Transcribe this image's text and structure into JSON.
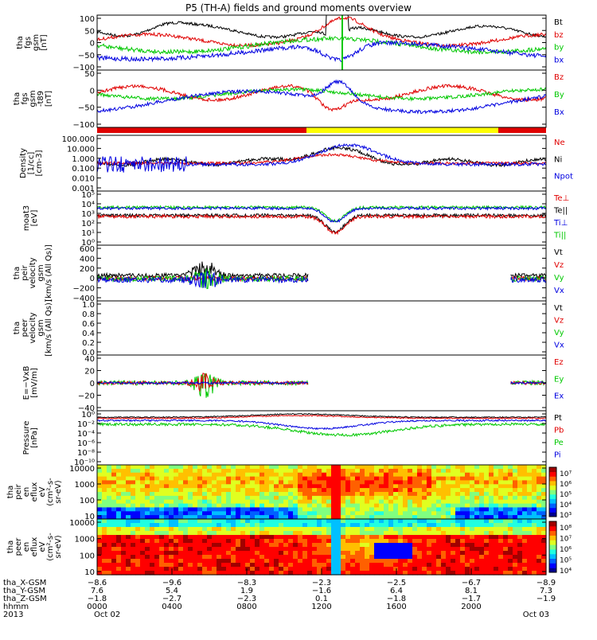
{
  "title": "P5 (TH-A) fields and ground moments overview",
  "colors": {
    "black": "#000000",
    "red": "#e00000",
    "green": "#00c800",
    "blue": "#0000e0",
    "yellow": "#ffff00",
    "cyan": "#00a0a0"
  },
  "chart_data": [
    {
      "type": "line",
      "panel": "fgs",
      "ylabel_lines": [
        "tha",
        "fgs",
        "gsm",
        "[nT]"
      ],
      "yticks": [
        "100",
        "50",
        "0",
        "−50",
        "−100"
      ],
      "ylim": [
        -100,
        100
      ],
      "legend": [
        {
          "name": "Bt",
          "color": "black"
        },
        {
          "name": "bz",
          "color": "red"
        },
        {
          "name": "by",
          "color": "green"
        },
        {
          "name": "bx",
          "color": "blue"
        }
      ]
    },
    {
      "type": "line",
      "panel": "fgs_t89",
      "ylabel_lines": [
        "tha",
        "fgs",
        "gsm",
        "-t89",
        "[nT]"
      ],
      "yticks": [
        "50",
        "0",
        "−50",
        "−100"
      ],
      "ylim": [
        -120,
        80
      ],
      "legend": [
        {
          "name": "Bz",
          "color": "red"
        },
        {
          "name": "By",
          "color": "green"
        },
        {
          "name": "Bx",
          "color": "blue"
        }
      ]
    },
    {
      "type": "line",
      "panel": "density",
      "ylabel_lines": [
        "Density",
        "[1/cc]",
        "[cm-3]"
      ],
      "yticks": [
        "100.000",
        "10.000",
        "1.000",
        "0.100",
        "0.010",
        "0.001"
      ],
      "log_scale": true,
      "legend": [
        {
          "name": "Ne",
          "color": "red"
        },
        {
          "name": "Ni",
          "color": "black"
        },
        {
          "name": "Npot",
          "color": "blue"
        }
      ]
    },
    {
      "type": "line",
      "panel": "temperature",
      "ylabel_lines": [
        "moat3",
        "[eV]"
      ],
      "yticks": [
        "10⁵",
        "10⁴",
        "10³",
        "10²",
        "10¹",
        "10⁰"
      ],
      "log_scale": true,
      "legend": [
        {
          "name": "Te⊥",
          "color": "red"
        },
        {
          "name": "Te||",
          "color": "black"
        },
        {
          "name": "Ti⊥",
          "color": "blue"
        },
        {
          "name": "Ti||",
          "color": "green"
        }
      ]
    },
    {
      "type": "line",
      "panel": "peir_velocity",
      "ylabel_lines": [
        "tha",
        "peir",
        "velocity",
        "gsm",
        "[km/s (All Qs)]"
      ],
      "yticks": [
        "600",
        "400",
        "200",
        "0",
        "−200",
        "−400"
      ],
      "ylim": [
        -400,
        600
      ],
      "legend": [
        {
          "name": "Vt",
          "color": "black"
        },
        {
          "name": "Vz",
          "color": "red"
        },
        {
          "name": "Vy",
          "color": "green"
        },
        {
          "name": "Vx",
          "color": "blue"
        }
      ]
    },
    {
      "type": "line",
      "panel": "peer_velocity",
      "ylabel_lines": [
        "tha",
        "peer",
        "velocity",
        "gsm",
        "[km/s (All Qs)]"
      ],
      "yticks": [
        "1.0",
        "0.8",
        "0.6",
        "0.4",
        "0.2",
        "0.0"
      ],
      "ylim": [
        0,
        1
      ],
      "legend": [
        {
          "name": "Vt",
          "color": "black"
        },
        {
          "name": "Vz",
          "color": "red"
        },
        {
          "name": "Vy",
          "color": "green"
        },
        {
          "name": "Vx",
          "color": "blue"
        }
      ]
    },
    {
      "type": "line",
      "panel": "efield",
      "ylabel_lines": [
        "E=−VxB",
        "[mV/m]"
      ],
      "yticks": [
        "40",
        "20",
        "0",
        "−20",
        "−40"
      ],
      "ylim": [
        -40,
        40
      ],
      "legend": [
        {
          "name": "Ez",
          "color": "red"
        },
        {
          "name": "Ey",
          "color": "green"
        },
        {
          "name": "Ex",
          "color": "blue"
        }
      ]
    },
    {
      "type": "line",
      "panel": "pressure",
      "ylabel_lines": [
        "Pressure",
        "[nPa]"
      ],
      "yticks": [
        "10⁰",
        "10⁻²",
        "10⁻⁴",
        "10⁻⁶",
        "10⁻⁸",
        "10⁻¹⁰"
      ],
      "log_scale": true,
      "legend": [
        {
          "name": "Pt",
          "color": "black"
        },
        {
          "name": "Pb",
          "color": "red"
        },
        {
          "name": "Pe",
          "color": "green"
        },
        {
          "name": "Pi",
          "color": "blue"
        }
      ]
    },
    {
      "type": "heatmap",
      "panel": "peir_spectrogram",
      "ylabel_lines": [
        "tha",
        "peir",
        "en",
        "eflux",
        "eV",
        "(cm²-s-",
        "sr-eV)"
      ],
      "yticks": [
        "10000",
        "1000",
        "100",
        "10"
      ],
      "log_scale": true,
      "colorbar_ticks": [
        "10⁷",
        "10⁶",
        "10⁵",
        "10⁴",
        "10³"
      ]
    },
    {
      "type": "heatmap",
      "panel": "peer_spectrogram",
      "ylabel_lines": [
        "tha",
        "peer",
        "en",
        "eflux",
        "eV",
        "(cm²-s-",
        "sr-eV)"
      ],
      "yticks": [
        "10000",
        "1000",
        "100",
        "10"
      ],
      "log_scale": true,
      "colorbar_ticks": [
        "10⁸",
        "10⁷",
        "10⁶",
        "10⁵",
        "10⁴"
      ]
    }
  ],
  "orbit": {
    "row_labels": [
      "tha_X-GSM",
      "tha_Y-GSM",
      "tha_Z-GSM",
      "hhmm",
      "2013"
    ],
    "columns": [
      {
        "x": "−8.6",
        "y": "7.6",
        "z": "−1.8",
        "time": "0000",
        "date": "Oct 02"
      },
      {
        "x": "−9.6",
        "y": "5.4",
        "z": "−2.7",
        "time": "0400",
        "date": ""
      },
      {
        "x": "−8.3",
        "y": "1.9",
        "z": "−2.3",
        "time": "0800",
        "date": ""
      },
      {
        "x": "−2.3",
        "y": "−1.6",
        "z": "0.1",
        "time": "1200",
        "date": ""
      },
      {
        "x": "−2.5",
        "y": "6.4",
        "z": "−1.8",
        "time": "1600",
        "date": ""
      },
      {
        "x": "−6.7",
        "y": "8.1",
        "z": "−1.7",
        "time": "2000",
        "date": ""
      },
      {
        "x": "−8.9",
        "y": "7.3",
        "z": "−1.9",
        "time": "",
        "date": "Oct 03"
      }
    ]
  }
}
